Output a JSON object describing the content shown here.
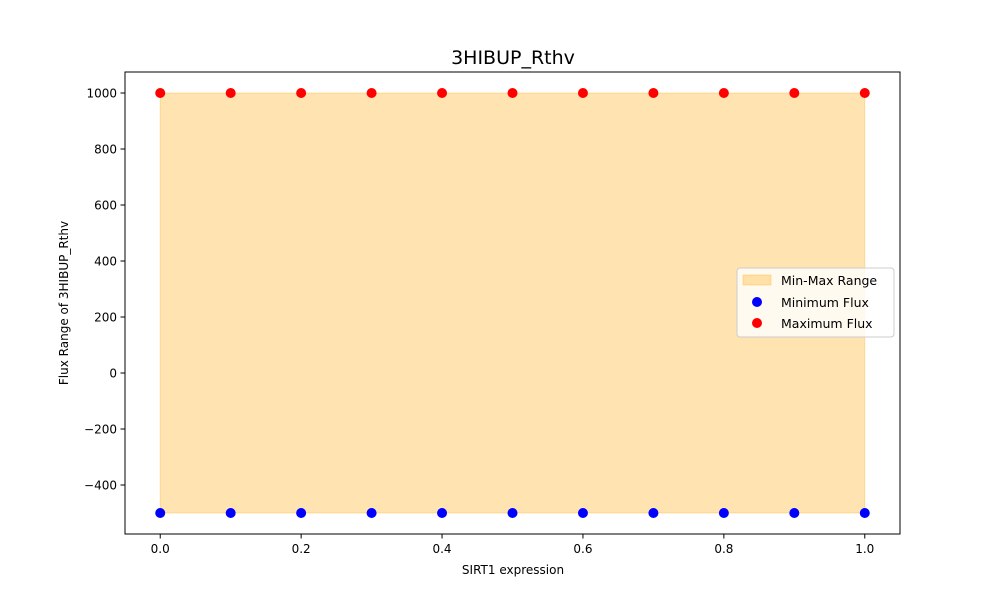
{
  "chart_data": {
    "type": "scatter",
    "title": "3HIBUP_Rthv",
    "xlabel": "SIRT1 expression",
    "ylabel": "Flux Range of 3HIBUP_Rthv",
    "xlim": [
      -0.05,
      1.05
    ],
    "ylim": [
      -575,
      1075
    ],
    "x_ticks": [
      0.0,
      0.2,
      0.4,
      0.6,
      0.8,
      1.0
    ],
    "x_tick_labels": [
      "0.0",
      "0.2",
      "0.4",
      "0.6",
      "0.8",
      "1.0"
    ],
    "y_ticks": [
      -400,
      -200,
      0,
      200,
      400,
      600,
      800,
      1000
    ],
    "y_tick_labels": [
      "−400",
      "−200",
      "0",
      "200",
      "400",
      "600",
      "800",
      "1000"
    ],
    "x": [
      0.0,
      0.1,
      0.2,
      0.3,
      0.4,
      0.5,
      0.6,
      0.7,
      0.8,
      0.9,
      1.0
    ],
    "series": [
      {
        "name": "Minimum Flux",
        "color": "#0000ff",
        "values": [
          -500,
          -500,
          -500,
          -500,
          -500,
          -500,
          -500,
          -500,
          -500,
          -500,
          -500
        ]
      },
      {
        "name": "Maximum Flux",
        "color": "#ff0000",
        "values": [
          1000,
          1000,
          1000,
          1000,
          1000,
          1000,
          1000,
          1000,
          1000,
          1000,
          1000
        ]
      }
    ],
    "fill": {
      "name": "Min-Max Range",
      "color": "#ffa500",
      "alpha": 0.3
    },
    "legend": {
      "placement": "center-right"
    },
    "grid": false
  }
}
